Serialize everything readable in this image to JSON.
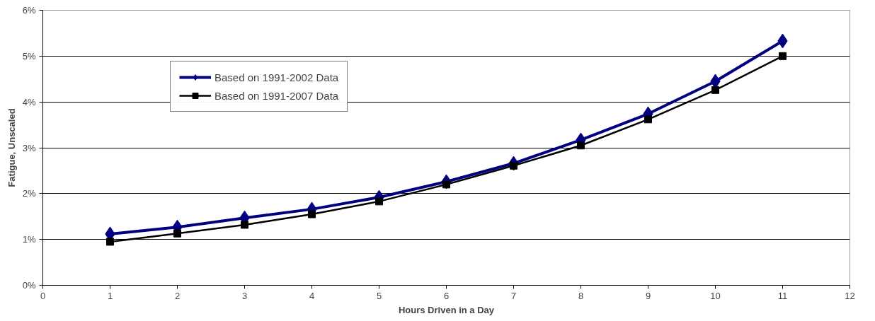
{
  "chart_data": {
    "type": "line",
    "xlabel": "Hours Driven in a Day",
    "ylabel": "Fatigue, Unscaled",
    "x": [
      1,
      2,
      3,
      4,
      5,
      6,
      7,
      8,
      9,
      10,
      11
    ],
    "series": [
      {
        "name": "Based on 1991-2002 Data",
        "color": "#000080",
        "marker": "diamond",
        "values": [
          1.12,
          1.27,
          1.47,
          1.66,
          1.92,
          2.26,
          2.66,
          3.17,
          3.74,
          4.45,
          5.33
        ]
      },
      {
        "name": "Based on 1991-2007 Data",
        "color": "#000000",
        "marker": "square",
        "values": [
          0.95,
          1.13,
          1.32,
          1.55,
          1.83,
          2.2,
          2.61,
          3.05,
          3.62,
          4.26,
          5.0
        ]
      }
    ],
    "xlim": [
      0,
      12
    ],
    "xticks": [
      0,
      1,
      2,
      3,
      4,
      5,
      6,
      7,
      8,
      9,
      10,
      11,
      12
    ],
    "ylim": [
      0,
      6
    ],
    "yticks": [
      {
        "value": 0,
        "label": "0%"
      },
      {
        "value": 1,
        "label": "1%"
      },
      {
        "value": 2,
        "label": "2%"
      },
      {
        "value": 3,
        "label": "3%"
      },
      {
        "value": 4,
        "label": "4%"
      },
      {
        "value": 5,
        "label": "5%"
      },
      {
        "value": 6,
        "label": "6%"
      }
    ],
    "grid": "y",
    "legend": "top left",
    "line_style": "solid"
  }
}
